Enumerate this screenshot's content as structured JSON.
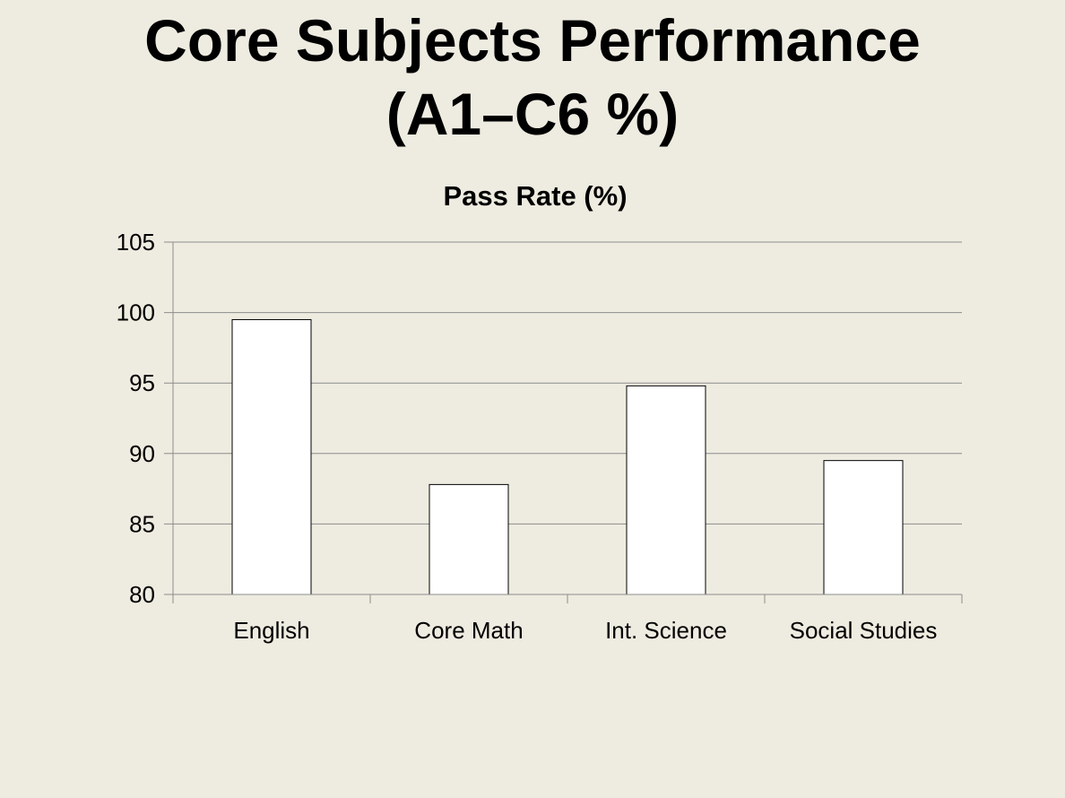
{
  "slide": {
    "title_line1": "Core Subjects Performance",
    "title_line2": "(A1–C6 %)"
  },
  "chart_data": {
    "type": "bar",
    "title": "Pass Rate (%)",
    "xlabel": "",
    "ylabel": "",
    "categories": [
      "English",
      "Core Math",
      "Int. Science",
      "Social Studies"
    ],
    "series": [
      {
        "values": [
          99.5,
          87.8,
          94.8,
          89.5
        ]
      }
    ],
    "ylim": [
      80,
      105
    ],
    "yticks": [
      80,
      85,
      90,
      95,
      100,
      105
    ],
    "grid": true,
    "legend": "none",
    "colors": {
      "bar_fill": "#ffffff",
      "bar_stroke": "#000000",
      "grid": "#8c8c8c",
      "axis": "#8c8c8c"
    }
  }
}
